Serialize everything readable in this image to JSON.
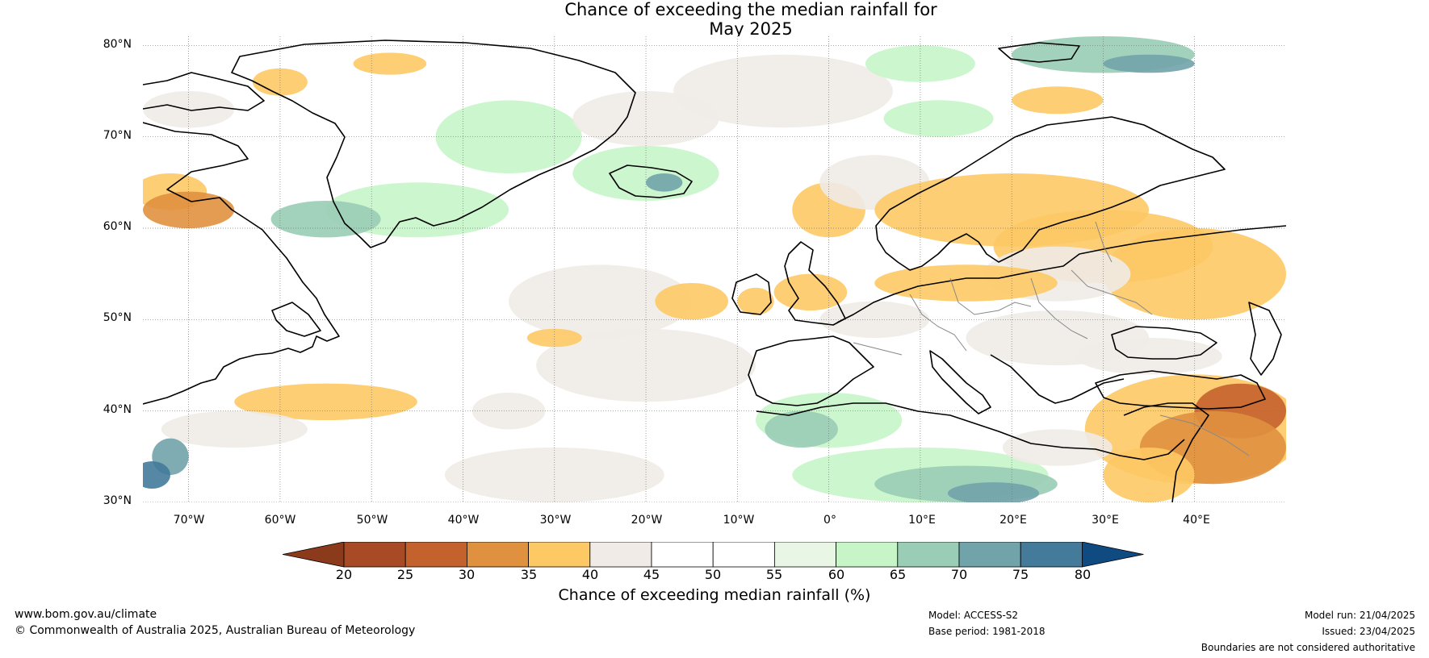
{
  "title": {
    "line1": "Chance of exceeding the median rainfall for",
    "line2": "May 2025"
  },
  "map": {
    "lat_labels": [
      "80°N",
      "70°N",
      "60°N",
      "50°N",
      "40°N",
      "30°N"
    ],
    "lat_values": [
      80,
      70,
      60,
      50,
      40,
      30
    ],
    "lon_labels": [
      "70°W",
      "60°W",
      "50°W",
      "40°W",
      "30°W",
      "20°W",
      "10°W",
      "0°",
      "10°E",
      "20°E",
      "30°E",
      "40°E"
    ],
    "lon_values": [
      -70,
      -60,
      -50,
      -40,
      -30,
      -20,
      -10,
      0,
      10,
      20,
      30,
      40
    ],
    "extent": {
      "lon_min": -75,
      "lon_max": 50,
      "lat_min": 30,
      "lat_max": 81
    }
  },
  "colorbar": {
    "ticks": [
      "20",
      "25",
      "30",
      "35",
      "40",
      "45",
      "50",
      "55",
      "60",
      "65",
      "70",
      "75",
      "80"
    ],
    "colors": [
      "#a74a25",
      "#c4622d",
      "#e0913f",
      "#fdc965",
      "#f0ebe7",
      "#ffffff",
      "#ffffff",
      "#e9f6e6",
      "#c7f5c8",
      "#99cdb5",
      "#71a3aa",
      "#447a9a"
    ],
    "under_color": "#8c3a1c",
    "over_color": "#0f4a80",
    "label": "Chance of exceeding median rainfall (%)"
  },
  "footer": {
    "website": "www.bom.gov.au/climate",
    "copyright": "© Commonwealth of Australia 2025, Australian Bureau of Meteorology",
    "model": "Model: ACCESS-S2",
    "base_period": "Base period: 1981-2018",
    "model_run": "Model run: 21/04/2025",
    "issued": "Issued: 23/04/2025",
    "disclaimer": "Boundaries are not considered authoritative"
  }
}
